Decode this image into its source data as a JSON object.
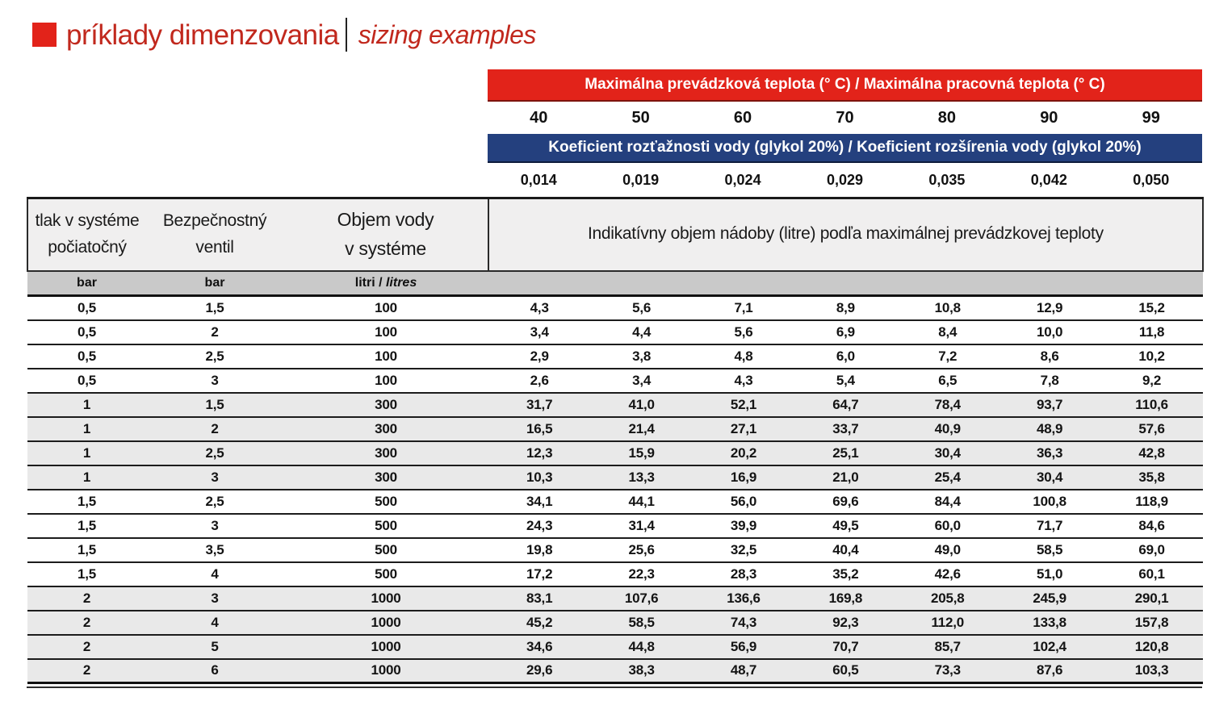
{
  "title": {
    "main": "príklady dimenzovania",
    "separator": "|",
    "sub": "sizing examples"
  },
  "bands": {
    "temperature_header": "Maximálna prevádzková teplota (° C) / Maximálna pracovná teplota (° C)",
    "temperatures": [
      "40",
      "50",
      "60",
      "70",
      "80",
      "90",
      "99"
    ],
    "coefficient_header": "Koeficient rozťažnosti vody (glykol 20%) / Koeficient rozšírenia vody (glykol 20%)",
    "coefficients": [
      "0,014",
      "0,019",
      "0,024",
      "0,029",
      "0,035",
      "0,042",
      "0,050"
    ]
  },
  "table": {
    "column_headers": {
      "col1_line1": "tlak v systéme",
      "col1_line2": "počiatočný",
      "col2_line1": "Bezpečnostný",
      "col2_line2": "ventil",
      "col3_line1": "Objem vody",
      "col3_line2": "v systéme"
    },
    "span_header": "Indikatívny objem nádoby (litre) podľa maximálnej prevádzkovej teploty",
    "units": {
      "col1": "bar",
      "col2": "bar",
      "col3_normal": "litri / ",
      "col3_italic": "litres"
    },
    "rows": [
      {
        "tlak": "0,5",
        "ventil": "1,5",
        "objem": "100",
        "shaded": false,
        "values": [
          "4,3",
          "5,6",
          "7,1",
          "8,9",
          "10,8",
          "12,9",
          "15,2"
        ]
      },
      {
        "tlak": "0,5",
        "ventil": "2",
        "objem": "100",
        "shaded": false,
        "values": [
          "3,4",
          "4,4",
          "5,6",
          "6,9",
          "8,4",
          "10,0",
          "11,8"
        ]
      },
      {
        "tlak": "0,5",
        "ventil": "2,5",
        "objem": "100",
        "shaded": false,
        "values": [
          "2,9",
          "3,8",
          "4,8",
          "6,0",
          "7,2",
          "8,6",
          "10,2"
        ]
      },
      {
        "tlak": "0,5",
        "ventil": "3",
        "objem": "100",
        "shaded": false,
        "values": [
          "2,6",
          "3,4",
          "4,3",
          "5,4",
          "6,5",
          "7,8",
          "9,2"
        ]
      },
      {
        "tlak": "1",
        "ventil": "1,5",
        "objem": "300",
        "shaded": true,
        "values": [
          "31,7",
          "41,0",
          "52,1",
          "64,7",
          "78,4",
          "93,7",
          "110,6"
        ]
      },
      {
        "tlak": "1",
        "ventil": "2",
        "objem": "300",
        "shaded": true,
        "values": [
          "16,5",
          "21,4",
          "27,1",
          "33,7",
          "40,9",
          "48,9",
          "57,6"
        ]
      },
      {
        "tlak": "1",
        "ventil": "2,5",
        "objem": "300",
        "shaded": true,
        "values": [
          "12,3",
          "15,9",
          "20,2",
          "25,1",
          "30,4",
          "36,3",
          "42,8"
        ]
      },
      {
        "tlak": "1",
        "ventil": "3",
        "objem": "300",
        "shaded": true,
        "values": [
          "10,3",
          "13,3",
          "16,9",
          "21,0",
          "25,4",
          "30,4",
          "35,8"
        ]
      },
      {
        "tlak": "1,5",
        "ventil": "2,5",
        "objem": "500",
        "shaded": false,
        "values": [
          "34,1",
          "44,1",
          "56,0",
          "69,6",
          "84,4",
          "100,8",
          "118,9"
        ]
      },
      {
        "tlak": "1,5",
        "ventil": "3",
        "objem": "500",
        "shaded": false,
        "values": [
          "24,3",
          "31,4",
          "39,9",
          "49,5",
          "60,0",
          "71,7",
          "84,6"
        ]
      },
      {
        "tlak": "1,5",
        "ventil": "3,5",
        "objem": "500",
        "shaded": false,
        "values": [
          "19,8",
          "25,6",
          "32,5",
          "40,4",
          "49,0",
          "58,5",
          "69,0"
        ]
      },
      {
        "tlak": "1,5",
        "ventil": "4",
        "objem": "500",
        "shaded": false,
        "values": [
          "17,2",
          "22,3",
          "28,3",
          "35,2",
          "42,6",
          "51,0",
          "60,1"
        ]
      },
      {
        "tlak": "2",
        "ventil": "3",
        "objem": "1000",
        "shaded": true,
        "values": [
          "83,1",
          "107,6",
          "136,6",
          "169,8",
          "205,8",
          "245,9",
          "290,1"
        ]
      },
      {
        "tlak": "2",
        "ventil": "4",
        "objem": "1000",
        "shaded": true,
        "values": [
          "45,2",
          "58,5",
          "74,3",
          "92,3",
          "112,0",
          "133,8",
          "157,8"
        ]
      },
      {
        "tlak": "2",
        "ventil": "5",
        "objem": "1000",
        "shaded": true,
        "values": [
          "34,6",
          "44,8",
          "56,9",
          "70,7",
          "85,7",
          "102,4",
          "120,8"
        ]
      },
      {
        "tlak": "2",
        "ventil": "6",
        "objem": "1000",
        "shaded": true,
        "values": [
          "29,6",
          "38,3",
          "48,7",
          "60,5",
          "73,3",
          "87,6",
          "103,3"
        ]
      }
    ]
  },
  "colors": {
    "accent_red": "#e2231a",
    "accent_blue": "#24407e",
    "shaded_row": "#e9e9e9",
    "unit_row_gray": "#c9c9c9",
    "header_band_gray": "#f0efef"
  }
}
